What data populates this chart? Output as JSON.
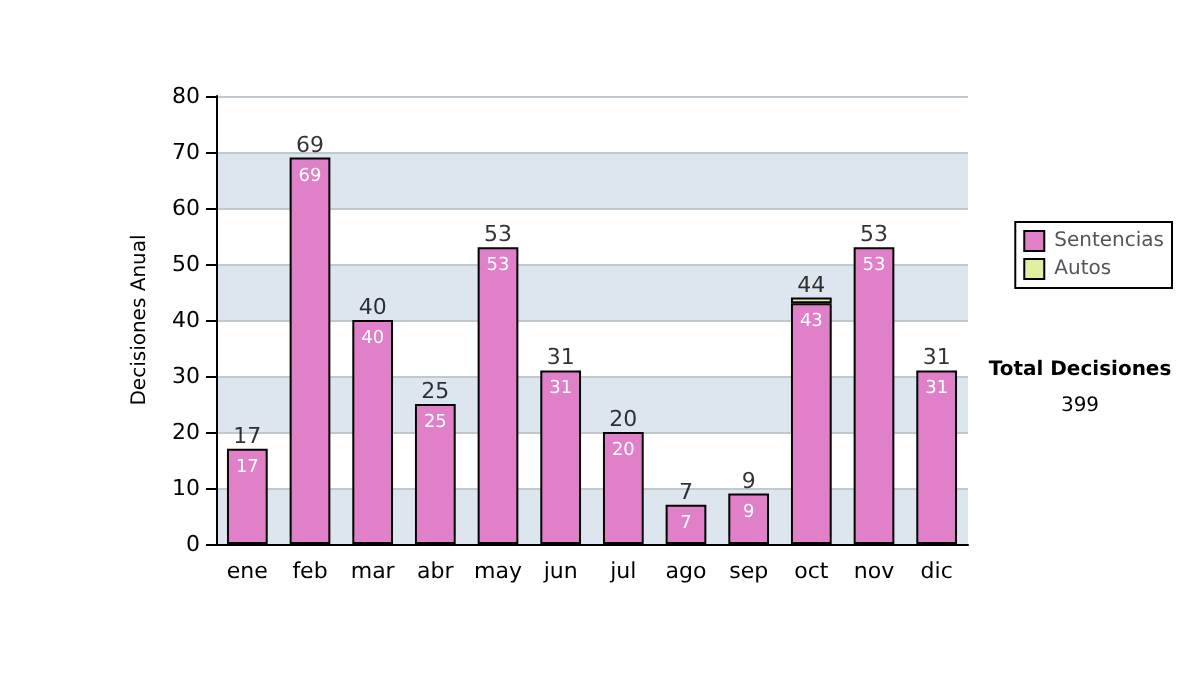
{
  "chart_data": {
    "type": "bar",
    "stacked": true,
    "ylabel": "Decisiones Anual",
    "categories": [
      "ene",
      "feb",
      "mar",
      "abr",
      "may",
      "jun",
      "jul",
      "ago",
      "sep",
      "oct",
      "nov",
      "dic"
    ],
    "series": [
      {
        "name": "Sentencias",
        "color": "#e080c8",
        "values": [
          17,
          69,
          40,
          25,
          53,
          31,
          20,
          7,
          9,
          43,
          53,
          31
        ],
        "value_labels": [
          "17",
          "69",
          "40",
          "25",
          "53",
          "31",
          "20",
          "7",
          "9",
          "43",
          "53",
          "31"
        ]
      },
      {
        "name": "Autos",
        "color": "#e0f0a0",
        "values": [
          0,
          0,
          0,
          0,
          0,
          0,
          0,
          0,
          0,
          1,
          0,
          0
        ]
      }
    ],
    "totals": [
      "17",
      "69",
      "40",
      "25",
      "53",
      "31",
      "20",
      "7",
      "9",
      "44",
      "53",
      "31"
    ],
    "ylim": [
      0,
      80
    ],
    "yticks": [
      0,
      10,
      20,
      30,
      40,
      50,
      60,
      70,
      80
    ],
    "grid": true,
    "legend": "right",
    "annotations": [
      "Total Decisiones",
      "399"
    ]
  }
}
